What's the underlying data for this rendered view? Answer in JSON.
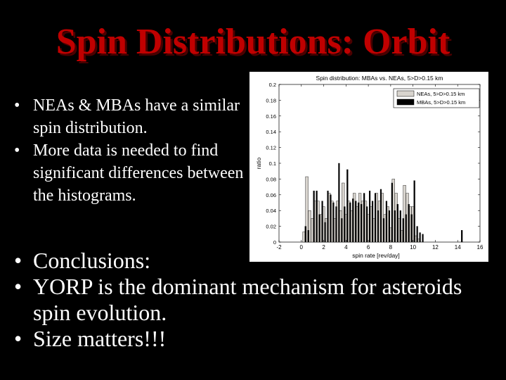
{
  "slide": {
    "title": "Spin Distributions: Orbit",
    "left_bullets": [
      "NEAs & MBAs have a similar spin distribution.",
      "More data is needed to find significant differences between the histograms."
    ],
    "main_bullets": [
      "Conclusions:",
      "YORP is the dominant mechanism for asteroids spin evolution.",
      "Size matters!!!"
    ]
  },
  "chart_data": {
    "type": "bar",
    "title": "Spin distribution: MBAs vs. NEAs, 5>D>0.15 km",
    "xlabel": "spin rate [rev/day]",
    "ylabel": "ratio",
    "xlim": [
      -2,
      16
    ],
    "ylim": [
      0,
      0.2
    ],
    "xticks": [
      -2,
      0,
      2,
      4,
      6,
      8,
      10,
      12,
      14,
      16
    ],
    "xtick_labels": [
      "-2",
      "0",
      "2",
      "4",
      "6",
      "8",
      "10",
      "12",
      "14",
      "16"
    ],
    "yticks": [
      0,
      0.02,
      0.04,
      0.06,
      0.08,
      0.1,
      0.12,
      0.14,
      0.16,
      0.18,
      0.2
    ],
    "ytick_labels": [
      "0",
      "0.02",
      "0.04",
      "0.06",
      "0.08",
      "0.1",
      "0.12",
      "0.14",
      "0.16",
      "0.18",
      "0.2"
    ],
    "bin_width": 0.25,
    "legend": "top-right",
    "series": [
      {
        "name": "NEAs, 5>D>0.15 km",
        "color": "#d8d4ce",
        "x": [
          0.25,
          0.5,
          0.75,
          1.0,
          1.25,
          1.5,
          1.75,
          2.0,
          2.25,
          2.5,
          2.75,
          3.0,
          3.25,
          3.5,
          3.75,
          4.0,
          4.25,
          4.5,
          4.75,
          5.0,
          5.25,
          5.5,
          5.75,
          6.0,
          6.25,
          6.5,
          6.75,
          7.0,
          7.25,
          7.5,
          7.75,
          8.0,
          8.25,
          8.5,
          8.75,
          9.0,
          9.25,
          9.5,
          9.75,
          10.0,
          10.25,
          10.5
        ],
        "values": [
          0.013,
          0.083,
          0.04,
          0.03,
          0.052,
          0.052,
          0.035,
          0.045,
          0.03,
          0.062,
          0.052,
          0.03,
          0.052,
          0.04,
          0.075,
          0.035,
          0.052,
          0.04,
          0.062,
          0.045,
          0.062,
          0.052,
          0.052,
          0.035,
          0.045,
          0.03,
          0.062,
          0.052,
          0.062,
          0.035,
          0.045,
          0.018,
          0.08,
          0.062,
          0.03,
          0.015,
          0.072,
          0.062,
          0.045,
          0.045,
          0.008,
          0.004
        ]
      },
      {
        "name": "MBAs, 5>D>0.15 km",
        "color": "#000000",
        "x": [
          0.375,
          0.625,
          1.125,
          1.375,
          1.625,
          1.875,
          2.125,
          2.375,
          2.625,
          2.875,
          3.125,
          3.375,
          3.625,
          3.875,
          4.125,
          4.375,
          4.625,
          4.875,
          5.125,
          5.375,
          5.625,
          5.875,
          6.125,
          6.375,
          6.625,
          6.875,
          7.125,
          7.375,
          7.625,
          7.875,
          8.125,
          8.375,
          8.625,
          8.875,
          9.125,
          9.375,
          9.625,
          9.875,
          10.125,
          10.375,
          10.625,
          10.875,
          14.375
        ],
        "values": [
          0.02,
          0.015,
          0.065,
          0.065,
          0.035,
          0.052,
          0.025,
          0.065,
          0.06,
          0.05,
          0.045,
          0.1,
          0.03,
          0.045,
          0.092,
          0.05,
          0.055,
          0.052,
          0.05,
          0.048,
          0.062,
          0.045,
          0.065,
          0.052,
          0.062,
          0.04,
          0.067,
          0.03,
          0.052,
          0.04,
          0.075,
          0.04,
          0.048,
          0.04,
          0.03,
          0.035,
          0.048,
          0.035,
          0.078,
          0.02,
          0.012,
          0.01,
          0.015
        ]
      }
    ]
  }
}
